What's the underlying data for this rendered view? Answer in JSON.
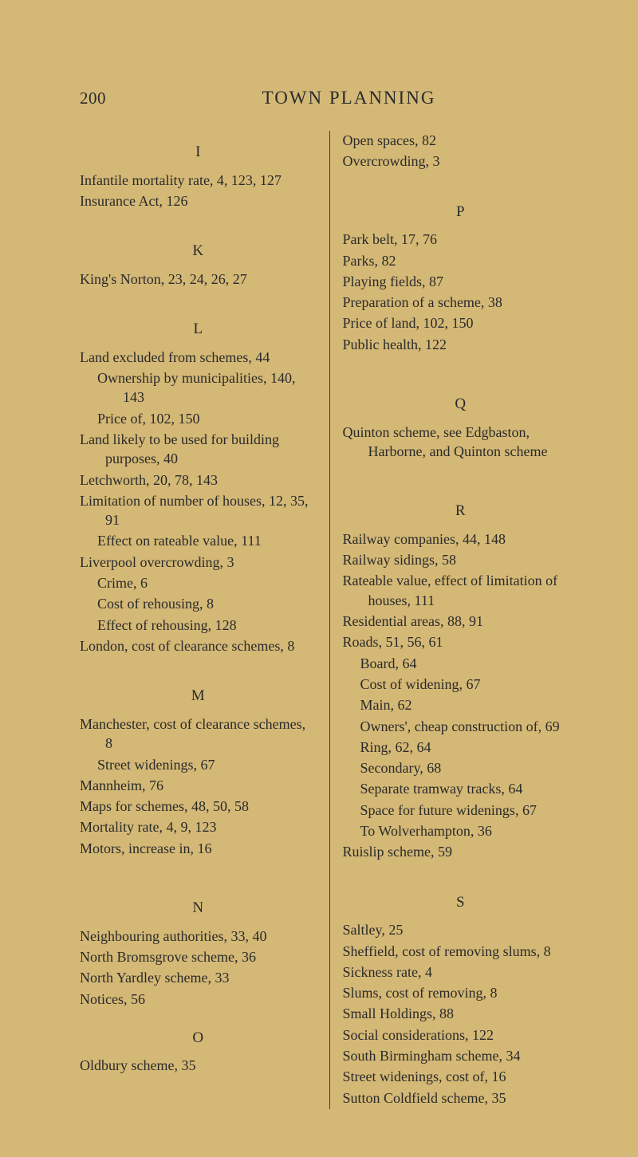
{
  "pageNumber": "200",
  "title": "TOWN PLANNING",
  "left": {
    "I": {
      "letter": "I",
      "entries": [
        {
          "t": "Infantile mortality rate, 4, 123, 127"
        },
        {
          "t": "Insurance Act, 126"
        }
      ]
    },
    "K": {
      "letter": "K",
      "entries": [
        {
          "t": "King's Norton, 23, 24, 26, 27"
        }
      ]
    },
    "L": {
      "letter": "L",
      "entries": [
        {
          "t": "Land excluded from schemes, 44"
        },
        {
          "t": "Ownership by municipalities, 140, 143",
          "sub": true
        },
        {
          "t": "Price of, 102, 150",
          "sub": true
        },
        {
          "t": "Land likely to be used for building purposes, 40"
        },
        {
          "t": "Letchworth, 20, 78, 143"
        },
        {
          "t": "Limitation of number of houses, 12, 35, 91"
        },
        {
          "t": "Effect on rateable value, 111",
          "sub": true
        },
        {
          "t": "Liverpool overcrowding, 3"
        },
        {
          "t": "Crime, 6",
          "sub": true
        },
        {
          "t": "Cost of rehousing, 8",
          "sub": true
        },
        {
          "t": "Effect of rehousing, 128",
          "sub": true
        },
        {
          "t": "London, cost of clearance schemes, 8"
        }
      ]
    },
    "M": {
      "letter": "M",
      "entries": [
        {
          "t": "Manchester, cost of clearance schemes, 8"
        },
        {
          "t": "Street widenings, 67",
          "sub": true
        },
        {
          "t": "Mannheim, 76"
        },
        {
          "t": "Maps for schemes, 48, 50, 58"
        },
        {
          "t": "Mortality rate, 4, 9, 123"
        },
        {
          "t": "Motors, increase in, 16"
        }
      ]
    },
    "N": {
      "letter": "N",
      "entries": [
        {
          "t": "Neighbouring authorities, 33, 40"
        },
        {
          "t": "North Bromsgrove scheme, 36"
        },
        {
          "t": "North Yardley scheme, 33"
        },
        {
          "t": "Notices, 56"
        }
      ]
    },
    "O": {
      "letter": "O",
      "entries": [
        {
          "t": "Oldbury scheme, 35"
        }
      ]
    }
  },
  "right": {
    "Ocont": {
      "entries": [
        {
          "t": "Open spaces, 82"
        },
        {
          "t": "Overcrowding, 3"
        }
      ]
    },
    "P": {
      "letter": "P",
      "entries": [
        {
          "t": "Park belt, 17, 76"
        },
        {
          "t": "Parks, 82"
        },
        {
          "t": "Playing fields, 87"
        },
        {
          "t": "Preparation of a scheme, 38"
        },
        {
          "t": "Price of land, 102, 150"
        },
        {
          "t": "Public health, 122"
        }
      ]
    },
    "Q": {
      "letter": "Q",
      "entries": [
        {
          "t": "Quinton scheme, see Edgbaston, Harborne, and Quinton scheme"
        }
      ]
    },
    "R": {
      "letter": "R",
      "entries": [
        {
          "t": "Railway companies, 44, 148"
        },
        {
          "t": "Railway sidings, 58"
        },
        {
          "t": "Rateable value, effect of limitation of houses, 111"
        },
        {
          "t": "Residential areas, 88, 91"
        },
        {
          "t": "Roads, 51, 56, 61"
        },
        {
          "t": "Board, 64",
          "sub": true
        },
        {
          "t": "Cost of widening, 67",
          "sub": true
        },
        {
          "t": "Main, 62",
          "sub": true
        },
        {
          "t": "Owners', cheap construction of, 69",
          "sub": true
        },
        {
          "t": "Ring, 62, 64",
          "sub": true
        },
        {
          "t": "Secondary, 68",
          "sub": true
        },
        {
          "t": "Separate tramway tracks, 64",
          "sub": true
        },
        {
          "t": "Space for future widenings, 67",
          "sub": true
        },
        {
          "t": "To Wolverhampton, 36",
          "sub": true
        },
        {
          "t": "Ruislip scheme, 59"
        }
      ]
    },
    "S": {
      "letter": "S",
      "entries": [
        {
          "t": "Saltley, 25"
        },
        {
          "t": "Sheffield, cost of removing slums, 8"
        },
        {
          "t": "Sickness rate, 4"
        },
        {
          "t": "Slums, cost of removing, 8"
        },
        {
          "t": "Small Holdings, 88"
        },
        {
          "t": "Social considerations, 122"
        },
        {
          "t": "South Birmingham scheme, 34"
        },
        {
          "t": "Street widenings, cost of, 16"
        },
        {
          "t": "Sutton Coldfield scheme, 35"
        }
      ]
    }
  }
}
